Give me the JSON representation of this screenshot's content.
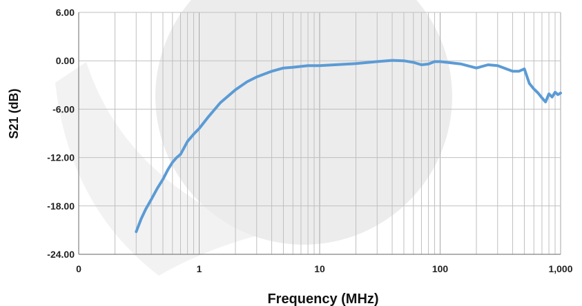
{
  "chart_data": {
    "type": "line",
    "title": "",
    "xlabel": "Frequency (MHz)",
    "ylabel": "S21 (dB)",
    "x_scale": "log",
    "xlim": [
      0.1,
      1000
    ],
    "ylim": [
      -24,
      6
    ],
    "y_ticks": [
      6,
      0,
      -6,
      -12,
      -18,
      -24
    ],
    "y_tick_labels": [
      "6.00",
      "0.00",
      "-6.00",
      "-12.00",
      "-18.00",
      "-24.00"
    ],
    "x_ticks": [
      0.1,
      1,
      10,
      100,
      1000
    ],
    "x_tick_labels": [
      "0",
      "1",
      "10",
      "100",
      "1,000"
    ],
    "grid": true,
    "legend": "none",
    "line_color": "#5B9BD5",
    "grid_color": "#BFBFBF",
    "series": [
      {
        "x": [
          0.3,
          0.33,
          0.36,
          0.4,
          0.45,
          0.5,
          0.55,
          0.6,
          0.65,
          0.7,
          0.8,
          0.9,
          1.0,
          1.2,
          1.5,
          2.0,
          2.5,
          3.0,
          4.0,
          5.0,
          6.0,
          8.0,
          10,
          15,
          20,
          30,
          40,
          50,
          60,
          70,
          80,
          90,
          100,
          150,
          200,
          250,
          300,
          400,
          450,
          500,
          550,
          600,
          650,
          700,
          750,
          800,
          850,
          900,
          950,
          1000
        ],
        "y": [
          -21.2,
          -19.6,
          -18.4,
          -17.2,
          -15.8,
          -14.7,
          -13.5,
          -12.6,
          -12.0,
          -11.6,
          -10.0,
          -9.1,
          -8.4,
          -6.9,
          -5.2,
          -3.6,
          -2.6,
          -2.0,
          -1.3,
          -0.9,
          -0.8,
          -0.6,
          -0.6,
          -0.45,
          -0.35,
          -0.1,
          0.05,
          0.0,
          -0.2,
          -0.5,
          -0.4,
          -0.1,
          -0.1,
          -0.4,
          -0.9,
          -0.5,
          -0.6,
          -1.3,
          -1.3,
          -1.0,
          -2.8,
          -3.5,
          -4.0,
          -4.6,
          -5.1,
          -4.1,
          -4.5,
          -3.9,
          -4.2,
          -4.0
        ]
      }
    ]
  }
}
